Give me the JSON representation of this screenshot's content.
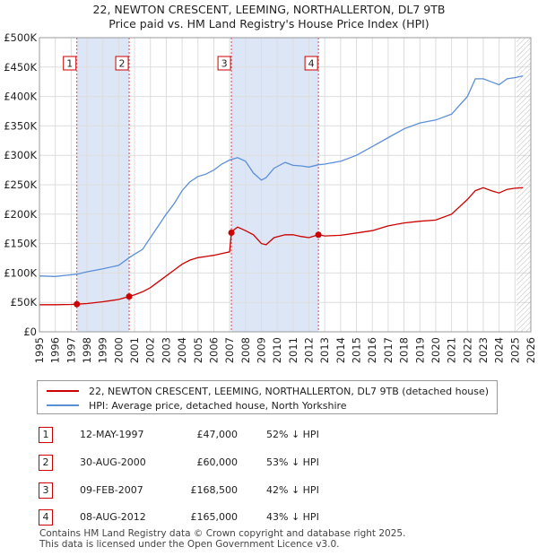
{
  "title_line1": "22, NEWTON CRESCENT, LEEMING, NORTHALLERTON, DL7 9TB",
  "title_line2": "Price paid vs. HM Land Registry's House Price Index (HPI)",
  "colors": {
    "property": "#cc0000",
    "hpi": "#5b8fd6",
    "shade": "#dde6f6",
    "grid": "#dddddd"
  },
  "chart_data": {
    "type": "line",
    "title": "22, NEWTON CRESCENT, LEEMING, NORTHALLERTON, DL7 9TB — Price paid vs. HM Land Registry's House Price Index (HPI)",
    "xlabel": "",
    "ylabel": "",
    "xlim": [
      1995,
      2026
    ],
    "ylim": [
      0,
      500000
    ],
    "y_ticks": [
      {
        "value": 0,
        "label": "£0"
      },
      {
        "value": 50000,
        "label": "£50K"
      },
      {
        "value": 100000,
        "label": "£100K"
      },
      {
        "value": 150000,
        "label": "£150K"
      },
      {
        "value": 200000,
        "label": "£200K"
      },
      {
        "value": 250000,
        "label": "£250K"
      },
      {
        "value": 300000,
        "label": "£300K"
      },
      {
        "value": 350000,
        "label": "£350K"
      },
      {
        "value": 400000,
        "label": "£400K"
      },
      {
        "value": 450000,
        "label": "£450K"
      },
      {
        "value": 500000,
        "label": "£500K"
      }
    ],
    "x_ticks": [
      "1995",
      "1996",
      "1997",
      "1998",
      "1999",
      "2000",
      "2001",
      "2002",
      "2003",
      "2004",
      "2005",
      "2006",
      "2007",
      "2008",
      "2009",
      "2010",
      "2011",
      "2012",
      "2013",
      "2014",
      "2015",
      "2016",
      "2017",
      "2018",
      "2019",
      "2020",
      "2021",
      "2022",
      "2023",
      "2024",
      "2025",
      "2026"
    ],
    "shaded_ranges": [
      [
        1997.36,
        2000.66
      ],
      [
        2007.11,
        2012.6
      ]
    ],
    "forecast_start": 2025.1,
    "series": [
      {
        "name": "22, NEWTON CRESCENT, LEEMING, NORTHALLERTON, DL7 9TB (detached house)",
        "color": "#cc0000",
        "points": [
          [
            1995.0,
            46000
          ],
          [
            1996.0,
            46000
          ],
          [
            1997.0,
            46500
          ],
          [
            1997.36,
            47000
          ],
          [
            1998.0,
            48000
          ],
          [
            1999.0,
            51000
          ],
          [
            2000.0,
            55000
          ],
          [
            2000.66,
            60000
          ],
          [
            2001.0,
            63000
          ],
          [
            2001.5,
            68000
          ],
          [
            2002.0,
            75000
          ],
          [
            2002.5,
            85000
          ],
          [
            2003.0,
            95000
          ],
          [
            2003.5,
            105000
          ],
          [
            2004.0,
            115000
          ],
          [
            2004.5,
            122000
          ],
          [
            2005.0,
            126000
          ],
          [
            2005.5,
            128000
          ],
          [
            2006.0,
            130000
          ],
          [
            2006.5,
            133000
          ],
          [
            2007.0,
            136000
          ],
          [
            2007.11,
            168500
          ],
          [
            2007.2,
            172000
          ],
          [
            2007.5,
            178000
          ],
          [
            2008.0,
            172000
          ],
          [
            2008.5,
            165000
          ],
          [
            2009.0,
            150000
          ],
          [
            2009.3,
            148000
          ],
          [
            2009.8,
            160000
          ],
          [
            2010.5,
            165000
          ],
          [
            2011.0,
            165000
          ],
          [
            2011.5,
            162000
          ],
          [
            2012.0,
            160000
          ],
          [
            2012.6,
            165000
          ],
          [
            2013.0,
            163000
          ],
          [
            2014.0,
            164000
          ],
          [
            2015.0,
            168000
          ],
          [
            2016.0,
            172000
          ],
          [
            2017.0,
            180000
          ],
          [
            2018.0,
            185000
          ],
          [
            2019.0,
            188000
          ],
          [
            2020.0,
            190000
          ],
          [
            2021.0,
            200000
          ],
          [
            2022.0,
            225000
          ],
          [
            2022.5,
            240000
          ],
          [
            2023.0,
            245000
          ],
          [
            2023.5,
            240000
          ],
          [
            2024.0,
            236000
          ],
          [
            2024.5,
            242000
          ],
          [
            2025.0,
            244000
          ],
          [
            2025.5,
            245000
          ]
        ]
      },
      {
        "name": "HPI: Average price, detached house, North Yorkshire",
        "color": "#5b8fd6",
        "points": [
          [
            1995.0,
            95000
          ],
          [
            1996.0,
            94000
          ],
          [
            1997.0,
            97000
          ],
          [
            1997.36,
            98000
          ],
          [
            1998.0,
            102000
          ],
          [
            1999.0,
            107000
          ],
          [
            2000.0,
            113000
          ],
          [
            2000.66,
            126000
          ],
          [
            2001.0,
            132000
          ],
          [
            2001.5,
            140000
          ],
          [
            2002.0,
            160000
          ],
          [
            2002.5,
            180000
          ],
          [
            2003.0,
            200000
          ],
          [
            2003.5,
            218000
          ],
          [
            2004.0,
            240000
          ],
          [
            2004.5,
            255000
          ],
          [
            2005.0,
            264000
          ],
          [
            2005.5,
            268000
          ],
          [
            2006.0,
            275000
          ],
          [
            2006.5,
            285000
          ],
          [
            2007.0,
            292000
          ],
          [
            2007.5,
            296000
          ],
          [
            2008.0,
            290000
          ],
          [
            2008.5,
            270000
          ],
          [
            2009.0,
            258000
          ],
          [
            2009.3,
            262000
          ],
          [
            2009.8,
            278000
          ],
          [
            2010.5,
            288000
          ],
          [
            2011.0,
            283000
          ],
          [
            2011.5,
            282000
          ],
          [
            2012.0,
            280000
          ],
          [
            2012.6,
            284000
          ],
          [
            2013.0,
            285000
          ],
          [
            2014.0,
            290000
          ],
          [
            2015.0,
            300000
          ],
          [
            2016.0,
            315000
          ],
          [
            2017.0,
            330000
          ],
          [
            2018.0,
            345000
          ],
          [
            2019.0,
            355000
          ],
          [
            2020.0,
            360000
          ],
          [
            2021.0,
            370000
          ],
          [
            2022.0,
            400000
          ],
          [
            2022.5,
            430000
          ],
          [
            2023.0,
            430000
          ],
          [
            2023.5,
            425000
          ],
          [
            2024.0,
            420000
          ],
          [
            2024.5,
            430000
          ],
          [
            2025.0,
            432000
          ],
          [
            2025.5,
            435000
          ]
        ]
      }
    ],
    "sale_markers": [
      {
        "label": "1",
        "x": 1997.36,
        "value": 47000
      },
      {
        "label": "2",
        "x": 2000.66,
        "value": 60000
      },
      {
        "label": "3",
        "x": 2007.11,
        "value": 168500
      },
      {
        "label": "4",
        "x": 2012.6,
        "value": 165000
      }
    ]
  },
  "legend": {
    "property_label": "22, NEWTON CRESCENT, LEEMING, NORTHALLERTON, DL7 9TB (detached house)",
    "hpi_label": "HPI: Average price, detached house, North Yorkshire"
  },
  "sales": [
    {
      "num": "1",
      "date": "12-MAY-1997",
      "price": "£47,000",
      "hpi": "52% ↓ HPI"
    },
    {
      "num": "2",
      "date": "30-AUG-2000",
      "price": "£60,000",
      "hpi": "53% ↓ HPI"
    },
    {
      "num": "3",
      "date": "09-FEB-2007",
      "price": "£168,500",
      "hpi": "42% ↓ HPI"
    },
    {
      "num": "4",
      "date": "08-AUG-2012",
      "price": "£165,000",
      "hpi": "43% ↓ HPI"
    }
  ],
  "footer_line1": "Contains HM Land Registry data © Crown copyright and database right 2025.",
  "footer_line2": "This data is licensed under the Open Government Licence v3.0."
}
